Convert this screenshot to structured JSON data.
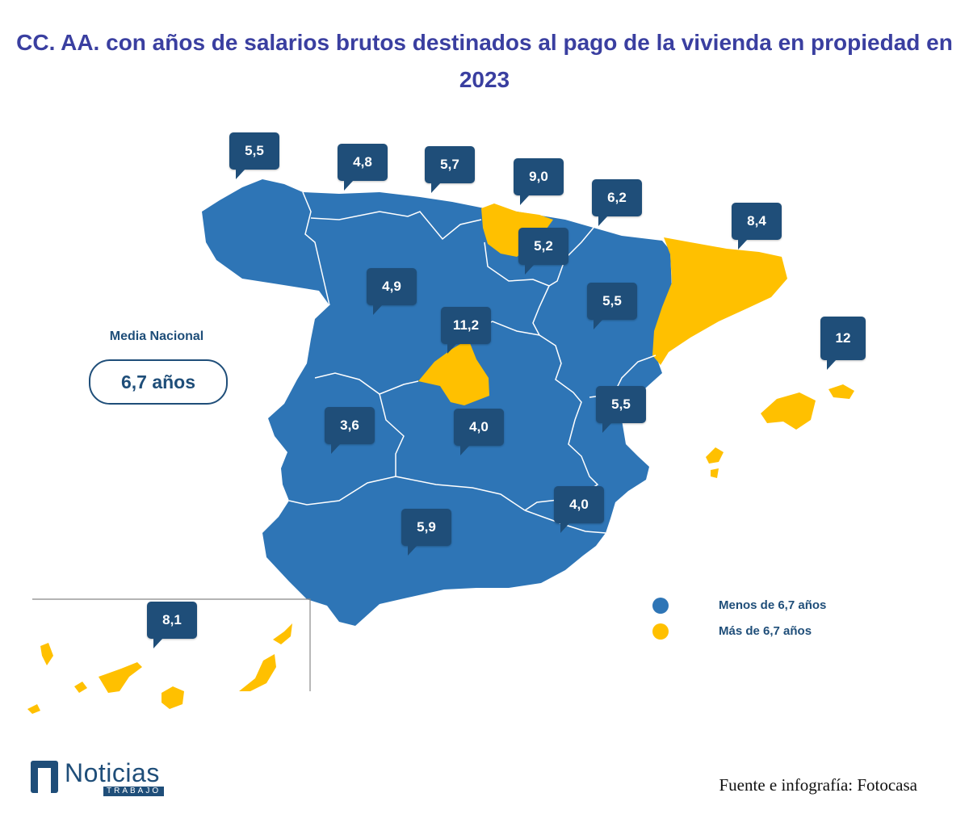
{
  "title": "CC. AA. con años de salarios brutos destinados al pago de la vivienda en propiedad en 2023",
  "media": {
    "label": "Media Nacional",
    "value": "6,7 años"
  },
  "legend": [
    {
      "label": "Menos de 6,7 años",
      "color": "#2e75b6"
    },
    {
      "label": "Más de 6,7 años",
      "color": "#ffc000"
    }
  ],
  "regions": {
    "galicia": "5,5",
    "asturias": "4,8",
    "cantabria": "5,7",
    "pais_vasco": "9,0",
    "navarra": "6,2",
    "la_rioja": "5,2",
    "cataluna": "8,4",
    "castilla_leon": "4,9",
    "madrid": "11,2",
    "aragon": "5,5",
    "baleares": "12",
    "extremadura": "3,6",
    "castilla_la_mancha": "4,0",
    "valencia": "5,5",
    "murcia": "4,0",
    "andalucia": "5,9",
    "canarias": "8,1"
  },
  "brand": {
    "name": "Noticias",
    "sub": "TRABAJO"
  },
  "source": "Fuente e infografía: Fotocasa"
}
